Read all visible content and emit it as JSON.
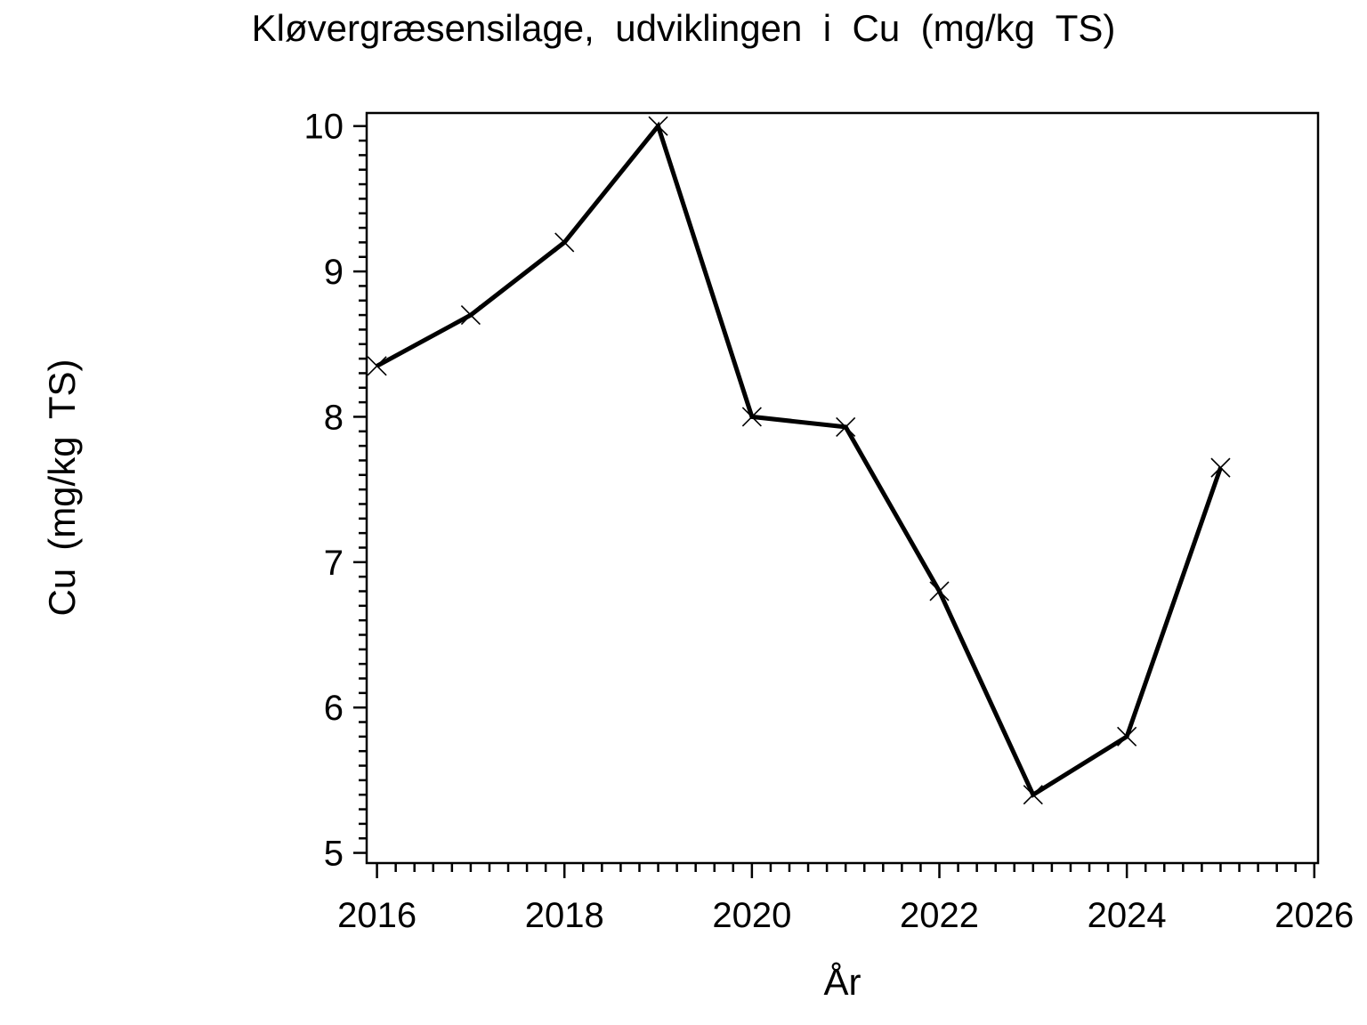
{
  "title": "Kløvergræsensilage, udviklingen i Cu (mg/kg TS)",
  "colors": {
    "foreground": "#000000",
    "background": "#ffffff"
  },
  "chart_data": {
    "type": "line",
    "title": "Kløvergræsensilage, udviklingen i Cu (mg/kg TS)",
    "xlabel": "År",
    "ylabel": "Cu (mg/kg TS)",
    "x": [
      2016,
      2017,
      2018,
      2019,
      2020,
      2021,
      2022,
      2023,
      2024,
      2025
    ],
    "series": [
      {
        "name": "Cu (mg/kg TS)",
        "values": [
          8.35,
          8.7,
          9.2,
          10.0,
          8.0,
          7.93,
          6.8,
          5.4,
          5.8,
          7.65
        ],
        "marker": "x",
        "color": "#000000"
      }
    ],
    "xlim": [
      2015.89,
      2026.04
    ],
    "ylim": [
      4.93,
      10.09
    ],
    "x_major_ticks": [
      2016,
      2018,
      2020,
      2022,
      2024,
      2026
    ],
    "x_minor_step": 0.2,
    "y_major_ticks": [
      5,
      6,
      7,
      8,
      9,
      10
    ],
    "y_minor_step": 0.1,
    "grid": false,
    "legend": "none",
    "frame": "box"
  }
}
